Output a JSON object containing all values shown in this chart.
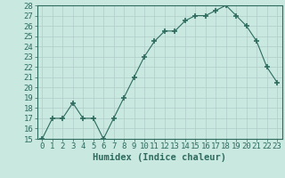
{
  "x": [
    0,
    1,
    2,
    3,
    4,
    5,
    6,
    7,
    8,
    9,
    10,
    11,
    12,
    13,
    14,
    15,
    16,
    17,
    18,
    19,
    20,
    21,
    22,
    23
  ],
  "y": [
    15,
    17,
    17,
    18.5,
    17,
    17,
    15,
    17,
    19,
    21,
    23,
    24.5,
    25.5,
    25.5,
    26.5,
    27,
    27,
    27.5,
    28,
    27,
    26,
    24.5,
    22,
    20.5
  ],
  "line_color": "#2e6b5e",
  "marker": "+",
  "marker_size": 4,
  "marker_lw": 1.2,
  "bg_color": "#c8e8e0",
  "grid_color": "#b0ccc8",
  "xlabel": "Humidex (Indice chaleur)",
  "ylim": [
    15,
    28
  ],
  "xlim": [
    -0.5,
    23.5
  ],
  "yticks": [
    15,
    16,
    17,
    18,
    19,
    20,
    21,
    22,
    23,
    24,
    25,
    26,
    27,
    28
  ],
  "xticks": [
    0,
    1,
    2,
    3,
    4,
    5,
    6,
    7,
    8,
    9,
    10,
    11,
    12,
    13,
    14,
    15,
    16,
    17,
    18,
    19,
    20,
    21,
    22,
    23
  ],
  "xlabel_fontsize": 7.5,
  "tick_fontsize": 6.5
}
